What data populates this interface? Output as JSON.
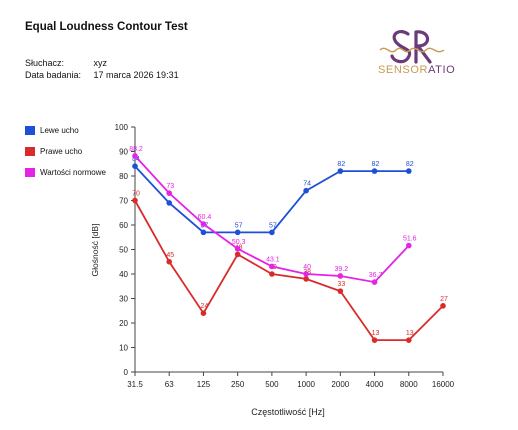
{
  "header": {
    "title": "Equal Loudness Contour Test",
    "listener_label": "Słuchacz:",
    "listener_value": "xyz",
    "date_label": "Data badania:",
    "date_value": "17 marca 2026 19:31"
  },
  "logo": {
    "text_part1": "SENSOR",
    "text_part2": "ATIO",
    "mark": "SR"
  },
  "colors": {
    "left": "#1f4fd6",
    "right": "#d92b2b",
    "norm": "#e423e6",
    "accent": "#6b3a7a",
    "gold": "#c89a56"
  },
  "legend": [
    {
      "label": "Lewe ucho",
      "color": "#1f4fd6"
    },
    {
      "label": "Prawe ucho",
      "color": "#d92b2b"
    },
    {
      "label": "Wartości normowe",
      "color": "#e423e6"
    }
  ],
  "chart_data": {
    "type": "line",
    "x": [
      "31.5",
      "63",
      "125",
      "250",
      "500",
      "1000",
      "2000",
      "4000",
      "8000",
      "16000"
    ],
    "xlabel": "Częstotliwość [Hz]",
    "ylabel": "Głośność [dB]",
    "ylim": [
      0,
      100
    ],
    "yticks": [
      0,
      10,
      20,
      30,
      40,
      50,
      60,
      70,
      80,
      90,
      100
    ],
    "grid": false,
    "legend_position": "top-left, outside plot",
    "series": [
      {
        "name": "Lewe ucho",
        "color": "#1f4fd6",
        "values": [
          84,
          69,
          57,
          57,
          57,
          74,
          82,
          82,
          82,
          null
        ],
        "labels": [
          "84",
          "",
          "57",
          "57",
          "57",
          "74",
          "82",
          "82",
          "82",
          ""
        ]
      },
      {
        "name": "Prawe ucho",
        "color": "#d92b2b",
        "values": [
          70,
          45,
          24,
          48,
          40,
          38,
          33,
          13,
          13,
          27
        ],
        "labels": [
          "70",
          "45",
          "24",
          "48",
          "40",
          "38",
          "33",
          "13",
          "13",
          "27"
        ]
      },
      {
        "name": "Wartości normowe",
        "color": "#e423e6",
        "values": [
          88.2,
          73,
          60.4,
          50.3,
          43.1,
          40,
          39.2,
          36.7,
          51.6,
          null
        ],
        "labels": [
          "88.2",
          "73",
          "60.4",
          "50.3",
          "43.1",
          "40",
          "39.2",
          "36.7",
          "51.6",
          ""
        ]
      }
    ]
  }
}
